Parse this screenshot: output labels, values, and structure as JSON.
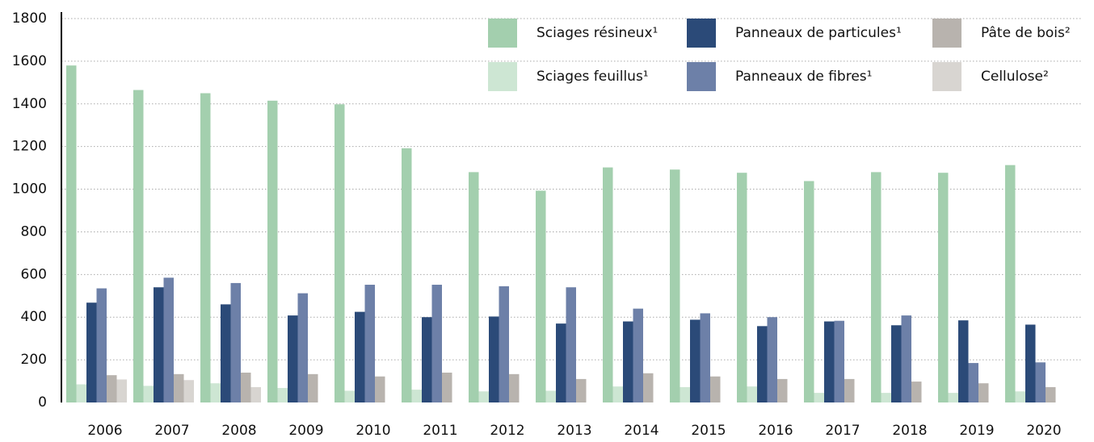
{
  "chart_data": {
    "type": "bar",
    "categories": [
      "2006",
      "2007",
      "2008",
      "2009",
      "2010",
      "2011",
      "2012",
      "2013",
      "2014",
      "2015",
      "2016",
      "2017",
      "2018",
      "2019",
      "2020"
    ],
    "series": [
      {
        "name": "Sciages résineux¹",
        "color": "#a3cfae",
        "values": [
          1580,
          1465,
          1450,
          1415,
          1398,
          1192,
          1080,
          993,
          1102,
          1092,
          1077,
          1038,
          1080,
          1077,
          1113
        ]
      },
      {
        "name": "Sciages feuillus¹",
        "color": "#cde6d3",
        "values": [
          85,
          78,
          90,
          68,
          55,
          60,
          52,
          55,
          75,
          72,
          75,
          45,
          45,
          45,
          52
        ]
      },
      {
        "name": "Panneaux de particules¹",
        "color": "#2b4a78",
        "values": [
          468,
          540,
          460,
          408,
          425,
          400,
          403,
          370,
          380,
          388,
          358,
          380,
          362,
          385,
          365
        ]
      },
      {
        "name": "Panneaux de fibres¹",
        "color": "#6d80a8",
        "values": [
          535,
          585,
          560,
          512,
          552,
          552,
          545,
          540,
          440,
          418,
          400,
          383,
          408,
          185,
          188
        ]
      },
      {
        "name": "Pâte de bois²",
        "color": "#b8b3ae",
        "values": [
          128,
          133,
          140,
          133,
          122,
          140,
          133,
          110,
          137,
          122,
          110,
          110,
          98,
          90,
          72
        ]
      },
      {
        "name": "Cellulose²",
        "color": "#d8d5d1",
        "values": [
          108,
          105,
          72,
          null,
          null,
          null,
          null,
          null,
          null,
          null,
          null,
          null,
          null,
          null,
          null
        ]
      }
    ],
    "ylim": [
      0,
      1800
    ],
    "yticks": [
      0,
      200,
      400,
      600,
      800,
      1000,
      1200,
      1400,
      1600,
      1800
    ],
    "grid": true
  }
}
